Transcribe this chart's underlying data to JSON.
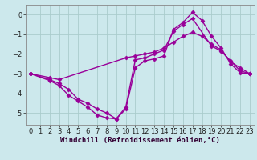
{
  "background_color": "#cce8ec",
  "grid_color": "#aacccc",
  "line_color": "#990099",
  "marker": "D",
  "markersize": 2.5,
  "linewidth": 1.0,
  "xlabel": "Windchill (Refroidissement éolien,°C)",
  "xlabel_fontsize": 6.5,
  "tick_fontsize": 6,
  "xlim": [
    -0.5,
    23.5
  ],
  "ylim": [
    -5.6,
    0.5
  ],
  "yticks": [
    0,
    -1,
    -2,
    -3,
    -4,
    -5
  ],
  "xticks": [
    0,
    1,
    2,
    3,
    4,
    5,
    6,
    7,
    8,
    9,
    10,
    11,
    12,
    13,
    14,
    15,
    16,
    17,
    18,
    19,
    20,
    21,
    22,
    23
  ],
  "series": [
    {
      "x": [
        0,
        2,
        3,
        10,
        11,
        12,
        13,
        14,
        15,
        16,
        17,
        18,
        19,
        20,
        21,
        22,
        23
      ],
      "y": [
        -3.0,
        -3.2,
        -3.3,
        -2.2,
        -2.1,
        -2.0,
        -1.9,
        -1.7,
        -1.4,
        -1.1,
        -0.9,
        -1.1,
        -1.5,
        -1.8,
        -2.4,
        -2.7,
        -3.0
      ]
    },
    {
      "x": [
        0,
        2,
        3,
        4,
        5,
        6,
        7,
        8,
        9,
        10,
        11,
        12,
        13,
        14,
        15,
        16,
        17,
        19,
        20,
        21,
        22,
        23
      ],
      "y": [
        -3.0,
        -3.3,
        -3.5,
        -3.8,
        -4.3,
        -4.5,
        -4.8,
        -5.0,
        -5.3,
        -4.7,
        -2.3,
        -2.2,
        -2.0,
        -1.8,
        -0.85,
        -0.5,
        -0.2,
        -1.6,
        -1.85,
        -2.35,
        -2.85,
        -3.0
      ]
    },
    {
      "x": [
        0,
        2,
        3,
        4,
        5,
        6,
        7,
        8,
        9,
        10,
        11,
        12,
        13,
        14,
        15,
        16,
        17,
        18,
        19,
        20,
        21,
        22,
        23
      ],
      "y": [
        -3.0,
        -3.35,
        -3.6,
        -4.1,
        -4.4,
        -4.7,
        -5.1,
        -5.25,
        -5.3,
        -4.8,
        -2.7,
        -2.35,
        -2.25,
        -2.1,
        -0.75,
        -0.4,
        0.12,
        -0.3,
        -1.1,
        -1.7,
        -2.5,
        -2.95,
        -3.0
      ]
    }
  ]
}
